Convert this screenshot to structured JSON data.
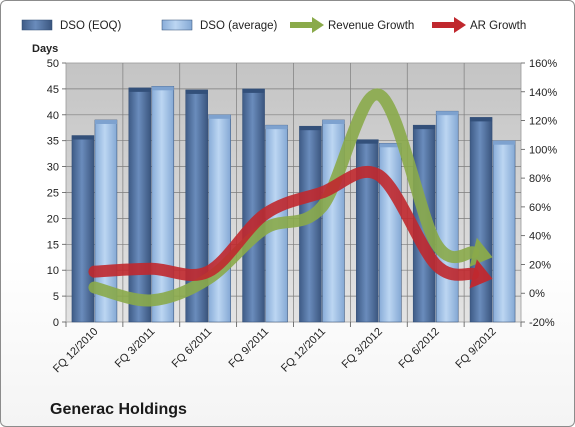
{
  "chart_data": {
    "type": "bar",
    "caption": "Generac Holdings",
    "ylabel": "Days",
    "ylim": [
      0,
      50
    ],
    "y_ticks": [
      "0",
      "5",
      "10",
      "15",
      "20",
      "25",
      "30",
      "35",
      "40",
      "45",
      "50"
    ],
    "y2lim": [
      -20,
      160
    ],
    "y2_ticks": [
      "-20%",
      "0%",
      "20%",
      "40%",
      "60%",
      "80%",
      "100%",
      "120%",
      "140%",
      "160%"
    ],
    "legend_position": "top",
    "grid": true,
    "categories": [
      "FQ 12/2010",
      "FQ 3/2011",
      "FQ 6/2011",
      "FQ 9/2011",
      "FQ 12/2011",
      "FQ 3/2012",
      "FQ 6/2012",
      "FQ 9/2012"
    ],
    "series": [
      {
        "name": "DSO (EOQ)",
        "kind": "bar",
        "axis": "left",
        "color": "#4a6a9a",
        "values": [
          36,
          45.2,
          44.8,
          45,
          37.8,
          35.2,
          38,
          39.5
        ]
      },
      {
        "name": "DSO (average)",
        "kind": "bar",
        "axis": "left",
        "color": "#9cc0e8",
        "values": [
          39,
          45.5,
          40,
          38,
          39,
          34.5,
          40.7,
          35
        ]
      },
      {
        "name": "Revenue Growth",
        "kind": "line",
        "axis": "right",
        "color": "#8aaa4a",
        "values": [
          4,
          -5,
          10,
          45,
          60,
          138,
          35,
          25
        ]
      },
      {
        "name": "AR Growth",
        "kind": "line",
        "axis": "right",
        "color": "#c0282e",
        "values": [
          15,
          17,
          15,
          55,
          70,
          82,
          20,
          10
        ]
      }
    ]
  }
}
